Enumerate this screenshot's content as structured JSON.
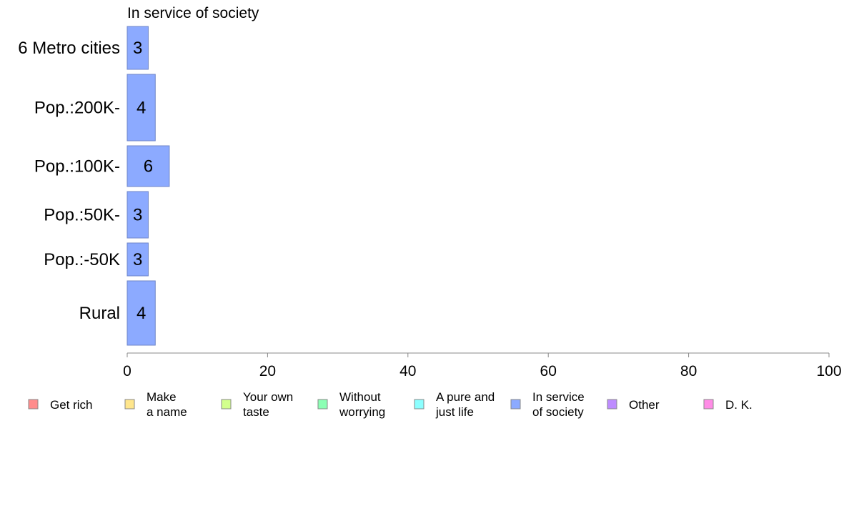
{
  "chart_data": {
    "type": "bar",
    "orientation": "horizontal",
    "title": "In service of society",
    "categories": [
      "6 Metro cities",
      "Pop.:200K-",
      "Pop.:100K-",
      "Pop.:50K-",
      "Pop.:-50K",
      "Rural"
    ],
    "series": [
      {
        "name": "In service of society",
        "values": [
          3,
          4,
          6,
          3,
          3,
          4
        ],
        "color": "#8caaff"
      }
    ],
    "data_labels": [
      "3",
      "4",
      "6",
      "3",
      "3",
      "4"
    ],
    "xlabel": "",
    "ylabel": "",
    "xlim": [
      0,
      100
    ],
    "xticks": [
      0,
      20,
      40,
      60,
      80,
      100
    ],
    "xtick_labels": [
      "0",
      "20",
      "40",
      "60",
      "80",
      "100"
    ],
    "grid": false,
    "legend_position": "bottom",
    "legend": [
      {
        "lines": [
          "Get rich"
        ],
        "color": "#ff8c8c"
      },
      {
        "lines": [
          "Make",
          "a name"
        ],
        "color": "#ffe68c"
      },
      {
        "lines": [
          "Your own",
          "taste"
        ],
        "color": "#d2ff8c"
      },
      {
        "lines": [
          "Without",
          "worrying"
        ],
        "color": "#8cffb4"
      },
      {
        "lines": [
          "A pure and",
          "just life"
        ],
        "color": "#8cffff"
      },
      {
        "lines": [
          "In service",
          "of society"
        ],
        "color": "#8caaff"
      },
      {
        "lines": [
          "Other"
        ],
        "color": "#be8cff"
      },
      {
        "lines": [
          "D. K."
        ],
        "color": "#ff8ce6"
      }
    ]
  }
}
